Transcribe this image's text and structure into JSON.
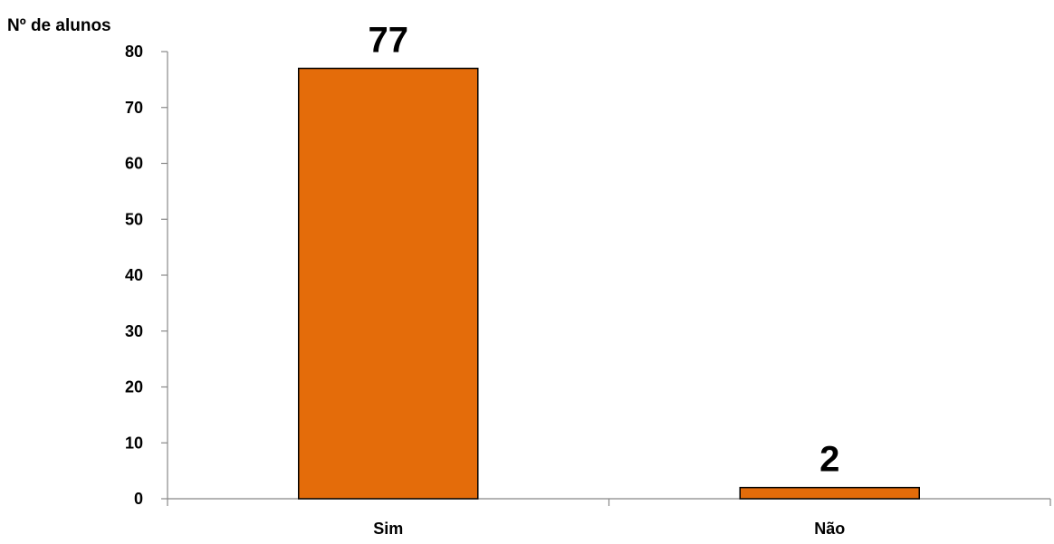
{
  "chart_data": {
    "type": "bar",
    "categories": [
      "Sim",
      "Não"
    ],
    "values": [
      77,
      2
    ],
    "data_labels": [
      "77",
      "2"
    ],
    "title": "",
    "xlabel": "",
    "ylabel": "Nº de alunos",
    "ylim": [
      0,
      80
    ],
    "yticks": [
      0,
      10,
      20,
      30,
      40,
      50,
      60,
      70,
      80
    ],
    "grid": false,
    "legend": "none",
    "bar_color": "#E46C0A",
    "bar_edge_color": "#000000"
  }
}
